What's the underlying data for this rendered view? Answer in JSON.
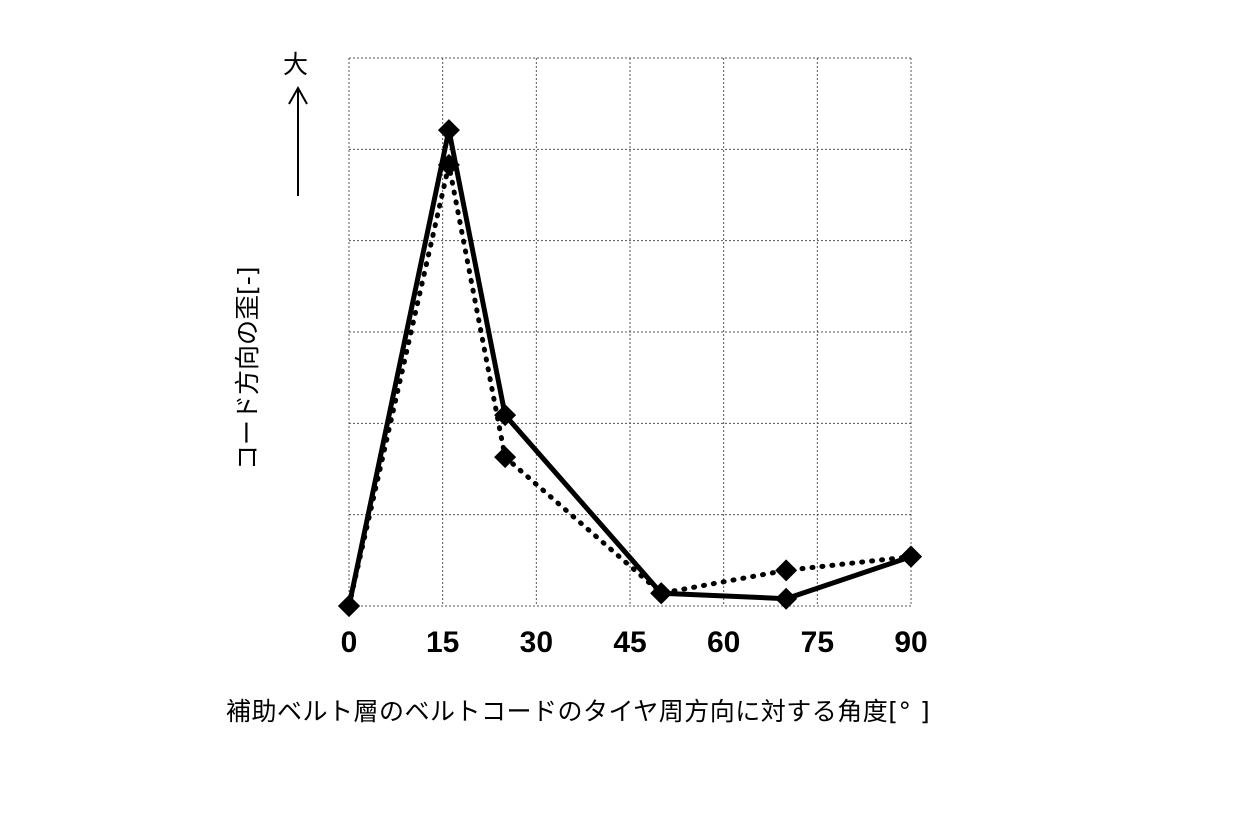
{
  "chart_data": {
    "type": "line",
    "title": "",
    "xlabel": "補助ベルト層のベルトコードのタイヤ周方向に対する角度[°]",
    "ylabel": "コード方向の歪[-]",
    "y_direction_label": "大",
    "x_ticks": [
      0,
      15,
      30,
      45,
      60,
      75,
      90
    ],
    "xlim": [
      0,
      90
    ],
    "ylim": [
      0,
      6
    ],
    "y_ticks_labeled": false,
    "grid": true,
    "legend": null,
    "series": [
      {
        "name": "solid",
        "line_style": "solid",
        "marker": "diamond",
        "x": [
          0,
          16,
          25,
          50,
          70,
          90
        ],
        "y": [
          0,
          5.21,
          2.09,
          0.14,
          0.08,
          0.54
        ]
      },
      {
        "name": "dotted",
        "line_style": "dotted",
        "marker": "diamond",
        "x": [
          0,
          16,
          25,
          50,
          70,
          90
        ],
        "y": [
          0,
          4.83,
          1.63,
          0.14,
          0.39,
          0.54
        ]
      }
    ]
  },
  "labels": {
    "xlabel": "補助ベルト層のベルトコードのタイヤ周方向に対する角度[°  ]",
    "ylabel": "コード方向の歪[-]",
    "big": "大"
  },
  "colors": {
    "line": "#000000",
    "grid": "#555555",
    "background": "#ffffff"
  }
}
